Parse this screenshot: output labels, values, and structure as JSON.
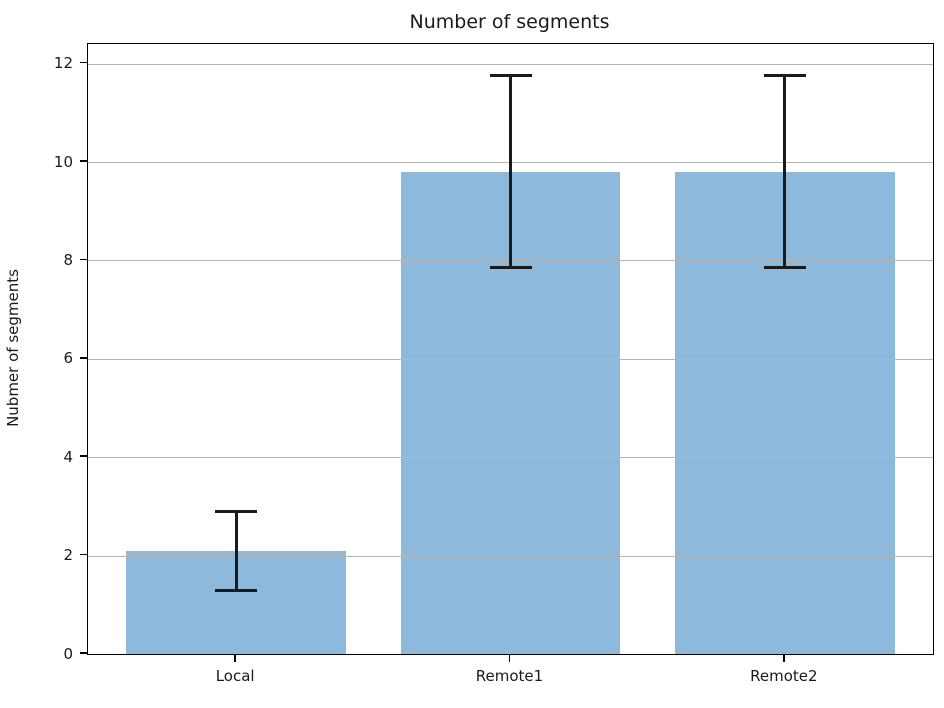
{
  "chart_data": {
    "type": "bar",
    "title": "Number of segments",
    "categories": [
      "Local",
      "Remote1",
      "Remote2"
    ],
    "values": [
      2.1,
      9.8,
      9.8
    ],
    "errors": [
      0.8,
      1.95,
      1.95
    ],
    "xlabel": "",
    "ylabel": "Nubmer of segments",
    "yticks": [
      0,
      2,
      4,
      6,
      8,
      10,
      12
    ],
    "ylim": [
      0,
      12.4
    ],
    "xlim": [
      -0.54,
      2.54
    ],
    "bar_width": 0.8,
    "grid": true,
    "grid_axis": "y",
    "grid_above_bars": true,
    "legend": null,
    "colors": {
      "bar_fill": "#8cb9dc",
      "error_bar": "#1a1a1a",
      "grid_line": "#b4b4b4",
      "spine": "#000000",
      "text": "#1a1a1a",
      "background": "#ffffff"
    }
  }
}
